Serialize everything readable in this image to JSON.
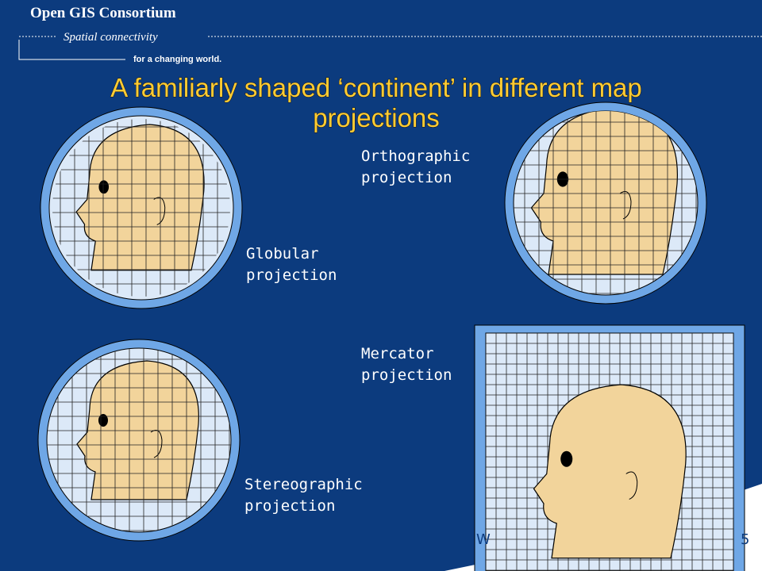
{
  "header": {
    "organization": "Open GIS Consortium",
    "tagline": "Spatial connectivity",
    "subtagline": "for a changing world."
  },
  "title": "A familiarly shaped ‘continent’ in different map projections",
  "labels": {
    "globular": [
      "Globular",
      "projection"
    ],
    "orthographic": [
      "Orthographic",
      "projection"
    ],
    "mercator": [
      "Mercator",
      "projection"
    ],
    "stereographic": [
      "Stereographic",
      "projection"
    ]
  },
  "footer": {
    "left": "W",
    "page": "5"
  }
}
